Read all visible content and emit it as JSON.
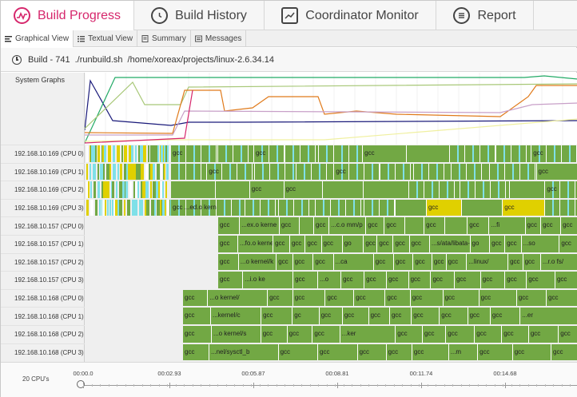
{
  "main_tabs": [
    {
      "label": "Build Progress",
      "icon": "pulse-icon",
      "active": true
    },
    {
      "label": "Build History",
      "icon": "history-icon",
      "active": false
    },
    {
      "label": "Coordinator Monitor",
      "icon": "monitor-icon",
      "active": false
    },
    {
      "label": "Report",
      "icon": "list-icon",
      "active": false
    }
  ],
  "sub_tabs": [
    {
      "label": "Graphical View",
      "icon": "bars-icon",
      "active": true
    },
    {
      "label": "Textual View",
      "icon": "list-icon",
      "active": false
    },
    {
      "label": "Summary",
      "icon": "document-icon",
      "active": false
    },
    {
      "label": "Messages",
      "icon": "message-icon",
      "active": false
    }
  ],
  "build": {
    "name": "Build - 741",
    "command": "./runbuild.sh",
    "path": "/home/xoreax/projects/linux-2.6.34.14"
  },
  "system_graphs_label": "System Graphs",
  "rows": [
    {
      "label": "192.168.10.169 (CPU 0)",
      "start": 0.0,
      "tasks": [
        "gcc",
        "",
        "gcc",
        "",
        "",
        "gcc",
        "",
        "",
        "",
        "gcc"
      ]
    },
    {
      "label": "192.168.10.169 (CPU 1)",
      "start": 0.0,
      "tasks": [
        "",
        "gcc",
        "",
        "",
        "gcc",
        "",
        "",
        "",
        "",
        "gcc"
      ]
    },
    {
      "label": "192.168.10.169 (CPU 2)",
      "start": 0.0,
      "tasks": [
        "",
        "",
        "gcc",
        "gcc",
        "",
        "",
        "",
        "",
        "",
        "gcc"
      ]
    },
    {
      "label": "192.168.10.169 (CPU 3)",
      "start": 0.0,
      "tasks": [
        "gcc ...ed.o kern",
        "",
        "",
        "",
        "",
        "",
        "gcc",
        "",
        "gcc",
        ""
      ]
    },
    {
      "label": "192.168.10.157 (CPU 0)",
      "start": 0.27,
      "tasks": [
        "gcc",
        "...ex.o kerne",
        "gcc",
        "",
        "gcc",
        "...c.o mm/p",
        "gcc",
        "gcc",
        "",
        "gcc",
        "",
        "gcc",
        "...fi",
        "gcc",
        "gcc",
        "gcc"
      ]
    },
    {
      "label": "192.168.10.157 (CPU 1)",
      "start": 0.27,
      "tasks": [
        "gcc",
        "...fo.o kernel",
        "gcc",
        "gcc",
        "gcc",
        "gcc",
        "go",
        "gcc",
        "gcc",
        "gcc",
        "gcc",
        "...s/ata/libata-c",
        "go",
        "gcc",
        "gcc",
        "...so",
        "gcc"
      ]
    },
    {
      "label": "192.168.10.157 (CPU 2)",
      "start": 0.27,
      "tasks": [
        "gcc",
        "...o kernel/k",
        "gcc",
        "gcc",
        "gcc",
        "...ca",
        "gcc",
        "gcc",
        "gcc",
        "gcc",
        "gcc",
        "...linux/",
        "gcc",
        "gcc",
        "...r.o fs/"
      ]
    },
    {
      "label": "192.168.10.157 (CPU 3)",
      "start": 0.27,
      "tasks": [
        "gcc",
        "...i.o ke",
        "gcc",
        "...o",
        "gcc",
        "gcc",
        "gcc",
        "gcc",
        "gcc",
        "gcc",
        "gcc",
        "gcc",
        "gcc",
        "gcc"
      ]
    },
    {
      "label": "192.168.10.168 (CPU 0)",
      "start": 0.2,
      "tasks": [
        "gcc",
        "...o kernel/",
        "gcc",
        "gcc",
        "gcc",
        "gcc",
        "gcc",
        "gcc",
        "gcc",
        "gcc",
        "gcc",
        "gcc"
      ]
    },
    {
      "label": "192.168.10.168 (CPU 1)",
      "start": 0.2,
      "tasks": [
        "gcc",
        "...kernel/c",
        "gcc",
        "gc",
        "gcc",
        "gcc",
        "gcc",
        "gcc",
        "gcc",
        "gcc",
        "gcc",
        "gcc",
        "...er"
      ]
    },
    {
      "label": "192.168.10.168 (CPU 2)",
      "start": 0.2,
      "tasks": [
        "gcc",
        "...o kernel/s",
        "gcc",
        "gcc",
        "gcc",
        "...ker",
        "gcc",
        "gcc",
        "gcc",
        "gcc",
        "gcc",
        "gcc",
        "gcc"
      ]
    },
    {
      "label": "192.168.10.168 (CPU 3)",
      "start": 0.2,
      "tasks": [
        "gcc",
        "...nel/sysctl_b",
        "gcc",
        "gcc",
        "gcc",
        "gcc",
        "gcc",
        "...m",
        "gcc",
        "gcc",
        "gcc"
      ]
    }
  ],
  "timeline": {
    "cpus_label": "20 CPU's",
    "ticks": [
      "00:00.0",
      "00:02.93",
      "00:05.87",
      "00:08.81",
      "00:11.74",
      "00:14.68"
    ]
  },
  "colors": {
    "accent": "#d6276c",
    "task_bar": "#72a844",
    "cache_hit": "#7fe0e8",
    "warning": "#e0d000",
    "row_bg": "#efefef"
  }
}
